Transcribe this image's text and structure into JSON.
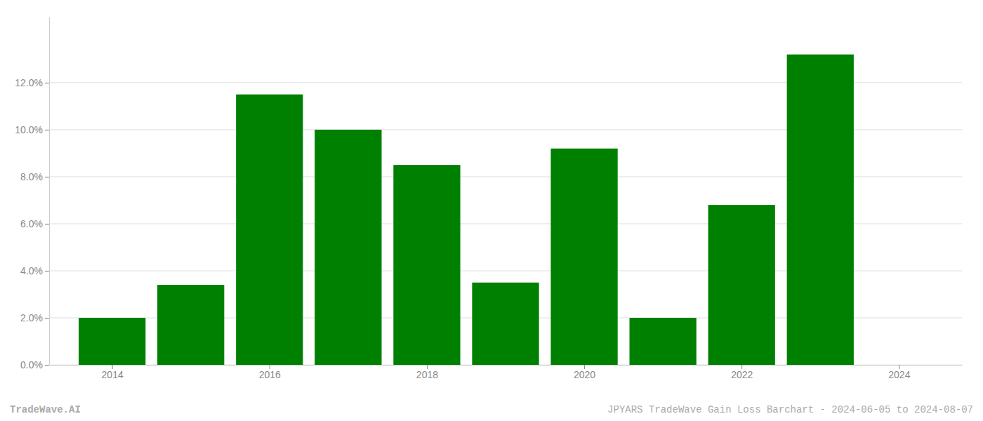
{
  "chart_data": {
    "type": "bar",
    "x": [
      2014,
      2015,
      2016,
      2017,
      2018,
      2019,
      2020,
      2021,
      2022,
      2023
    ],
    "values": [
      0.02,
      0.034,
      0.115,
      0.1,
      0.085,
      0.035,
      0.092,
      0.02,
      0.068,
      0.132
    ],
    "color": "#008000",
    "xlim": [
      2013.2,
      2024.8
    ],
    "xticks": [
      2014,
      2016,
      2018,
      2020,
      2022,
      2024
    ],
    "ylim": [
      0,
      0.148
    ],
    "yticks": [
      {
        "value": 0.0,
        "label": "0.0%"
      },
      {
        "value": 0.02,
        "label": "2.0%"
      },
      {
        "value": 0.04,
        "label": "4.0%"
      },
      {
        "value": 0.06,
        "label": "6.0%"
      },
      {
        "value": 0.08,
        "label": "8.0%"
      },
      {
        "value": 0.1,
        "label": "10.0%"
      },
      {
        "value": 0.12,
        "label": "12.0%"
      }
    ],
    "grid": true,
    "annotations": [
      "TradeWave.AI",
      "JPYARS TradeWave Gain Loss Barchart - 2024-06-05 to 2024-08-07"
    ]
  }
}
